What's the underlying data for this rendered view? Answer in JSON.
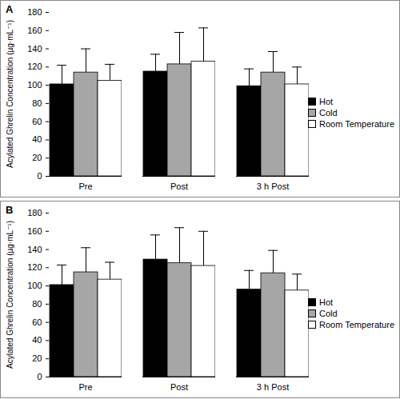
{
  "chart_data": [
    {
      "type": "bar",
      "title": "A",
      "categories": [
        "Pre",
        "Post",
        "3 h Post"
      ],
      "ylabel": "Acylated Ghrelin Concentration (µg·mL⁻¹)",
      "ylim": [
        0,
        180
      ],
      "yticks": [
        0,
        20,
        40,
        60,
        80,
        100,
        120,
        140,
        160,
        180
      ],
      "legend": "right",
      "series": [
        {
          "name": "Hot",
          "color": "#000000",
          "values": [
            101,
            115,
            99
          ],
          "errors": [
            21,
            19,
            19
          ]
        },
        {
          "name": "Cold",
          "color": "#a6a6a6",
          "values": [
            114,
            123,
            114
          ],
          "errors": [
            26,
            35,
            23
          ]
        },
        {
          "name": "Room Temperature",
          "color": "#ffffff",
          "values": [
            105,
            126,
            101
          ],
          "errors": [
            18,
            37,
            19
          ]
        }
      ]
    },
    {
      "type": "bar",
      "title": "B",
      "categories": [
        "Pre",
        "Post",
        "3 h Post"
      ],
      "ylabel": "Acylated Ghrelin Concentration (µg·mL⁻¹)",
      "ylim": [
        0,
        180
      ],
      "yticks": [
        0,
        20,
        40,
        60,
        80,
        100,
        120,
        140,
        160,
        180
      ],
      "legend": "right",
      "series": [
        {
          "name": "Hot",
          "color": "#000000",
          "values": [
            101,
            129,
            96
          ],
          "errors": [
            22,
            27,
            21
          ]
        },
        {
          "name": "Cold",
          "color": "#a6a6a6",
          "values": [
            115,
            125,
            114
          ],
          "errors": [
            27,
            39,
            25
          ]
        },
        {
          "name": "Room Temperature",
          "color": "#ffffff",
          "values": [
            107,
            122,
            95
          ],
          "errors": [
            19,
            38,
            18
          ]
        }
      ]
    }
  ]
}
